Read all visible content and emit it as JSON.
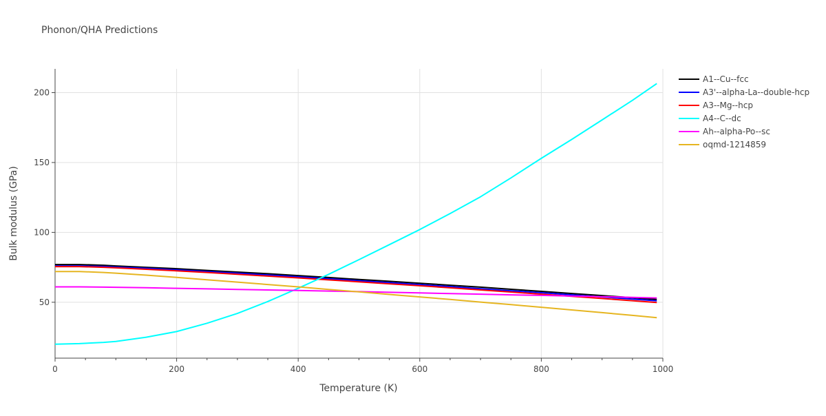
{
  "chart_data": {
    "type": "line",
    "title": "Phonon/QHA Predictions",
    "xlabel": "Temperature (K)",
    "ylabel": "Bulk modulus (GPa)",
    "xlim": [
      0,
      1000
    ],
    "ylim": [
      10,
      217
    ],
    "x_ticks": [
      0,
      200,
      400,
      600,
      800,
      1000
    ],
    "y_ticks": [
      50,
      100,
      150,
      200
    ],
    "grid": true,
    "legend_position": "right",
    "series": [
      {
        "name": "A1--Cu--fcc",
        "color": "#000000",
        "x": [
          0,
          40,
          80,
          100,
          150,
          200,
          250,
          300,
          350,
          400,
          450,
          500,
          550,
          600,
          650,
          700,
          750,
          800,
          850,
          900,
          950,
          990
        ],
        "values": [
          77,
          77,
          76.5,
          76,
          75,
          74,
          72.8,
          71.6,
          70.4,
          69.1,
          67.7,
          66.3,
          65,
          63.6,
          62.2,
          60.8,
          59.3,
          57.8,
          56.3,
          54.8,
          53.2,
          52
        ]
      },
      {
        "name": "A3'--alpha-La--double-hcp",
        "color": "#0000ff",
        "x": [
          0,
          40,
          80,
          100,
          150,
          200,
          250,
          300,
          350,
          400,
          450,
          500,
          550,
          600,
          650,
          700,
          750,
          800,
          850,
          900,
          950,
          990
        ],
        "values": [
          76,
          76,
          75.6,
          75.2,
          74.3,
          73.2,
          72,
          70.8,
          69.5,
          68.2,
          66.8,
          65.4,
          64,
          62.6,
          61.2,
          59.7,
          58.2,
          56.8,
          55.3,
          53.8,
          52.3,
          51
        ]
      },
      {
        "name": "A3--Mg--hcp",
        "color": "#ff0000",
        "x": [
          0,
          40,
          80,
          100,
          150,
          200,
          250,
          300,
          350,
          400,
          450,
          500,
          550,
          600,
          650,
          700,
          750,
          800,
          850,
          900,
          950,
          990
        ],
        "values": [
          75.5,
          75.5,
          75,
          74.6,
          73.6,
          72.5,
          71.3,
          70,
          68.7,
          67.4,
          66,
          64.6,
          63.2,
          61.8,
          60.3,
          58.8,
          57.3,
          55.8,
          54.2,
          52.7,
          51.1,
          49.8
        ]
      },
      {
        "name": "A4--C--dc",
        "color": "#00ffff",
        "x": [
          0,
          40,
          80,
          100,
          150,
          200,
          250,
          300,
          350,
          400,
          450,
          500,
          550,
          600,
          650,
          700,
          750,
          800,
          850,
          900,
          950,
          990
        ],
        "values": [
          20,
          20.4,
          21.3,
          22,
          25,
          29,
          35,
          42,
          50.5,
          60,
          70,
          80.5,
          91.2,
          102,
          113.5,
          125.5,
          139,
          153,
          166.5,
          180.5,
          194.5,
          206.5
        ]
      },
      {
        "name": "Ah--alpha-Po--sc",
        "color": "#ff00ff",
        "x": [
          0,
          40,
          80,
          100,
          150,
          200,
          250,
          300,
          350,
          400,
          450,
          500,
          550,
          600,
          650,
          700,
          750,
          800,
          850,
          900,
          950,
          990
        ],
        "values": [
          61,
          61,
          60.8,
          60.7,
          60.4,
          60,
          59.6,
          59.2,
          58.8,
          58.4,
          58,
          57.6,
          57.1,
          56.7,
          56.2,
          55.8,
          55.3,
          54.9,
          54.4,
          54,
          53.5,
          53.1
        ]
      },
      {
        "name": "oqmd-1214859",
        "color": "#e6b520",
        "x": [
          0,
          40,
          80,
          100,
          150,
          200,
          250,
          300,
          350,
          400,
          450,
          500,
          550,
          600,
          650,
          700,
          750,
          800,
          850,
          900,
          950,
          990
        ],
        "values": [
          72,
          72,
          71.3,
          70.8,
          69.4,
          67.8,
          66.1,
          64.4,
          62.7,
          61,
          59.2,
          57.4,
          55.6,
          53.8,
          52,
          50.1,
          48.3,
          46.4,
          44.5,
          42.6,
          40.6,
          39
        ]
      }
    ]
  }
}
